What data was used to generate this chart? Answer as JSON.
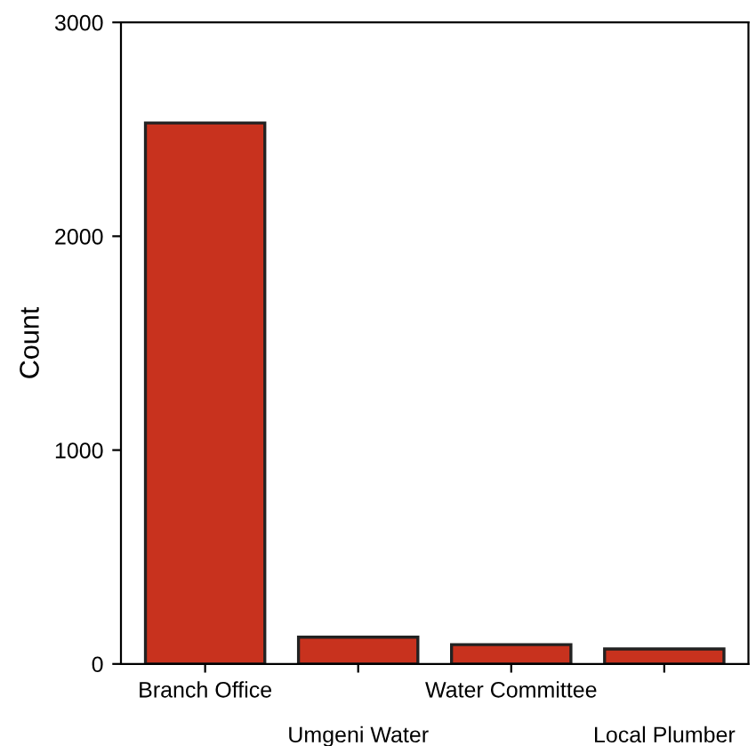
{
  "chart_data": {
    "type": "bar",
    "ylabel": "Count",
    "categories": [
      "Branch Office",
      "Umgeni Water",
      "Water Committee",
      "Local Plumber"
    ],
    "values": [
      2530,
      125,
      90,
      70
    ],
    "color": "#c8321e",
    "ylim": [
      0,
      3000
    ],
    "yticks": [
      0,
      1000,
      2000,
      3000
    ],
    "grid": false
  }
}
